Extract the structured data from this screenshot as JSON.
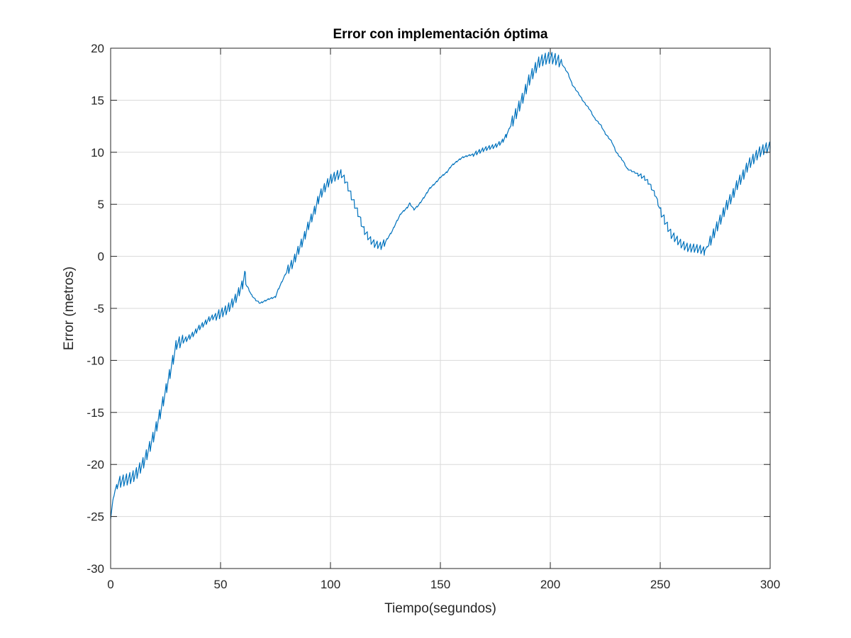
{
  "chart_data": {
    "type": "line",
    "title": "Error con implementación óptima",
    "xlabel": "Tiempo(segundos)",
    "ylabel": "Error (metros)",
    "xlim": [
      0,
      300
    ],
    "ylim": [
      -30,
      20
    ],
    "x_ticks": [
      "0",
      "50",
      "100",
      "150",
      "200",
      "250",
      "300"
    ],
    "y_ticks": [
      "20",
      "15",
      "10",
      "5",
      "0",
      "-5",
      "-10",
      "-15",
      "-20",
      "-25",
      "-30"
    ],
    "grid": true,
    "legend": "none",
    "colors": {
      "line": "#0072BD",
      "grid": "#d9d9d9",
      "axes": "#262626"
    },
    "series": [
      {
        "x": [
          0,
          1,
          2,
          3,
          5,
          8,
          10,
          12,
          15,
          18,
          20,
          22,
          25,
          28,
          30,
          32,
          35,
          38,
          40,
          43,
          45,
          48,
          50,
          53,
          55,
          57,
          60,
          61,
          62,
          64,
          66,
          68,
          70,
          72,
          75,
          76,
          78,
          80,
          83,
          85,
          88,
          90,
          93,
          95,
          98,
          100,
          103,
          105,
          107,
          110,
          113,
          115,
          118,
          120,
          123,
          125,
          128,
          130,
          132,
          135,
          136,
          138,
          140,
          143,
          145,
          148,
          150,
          153,
          155,
          158,
          160,
          163,
          165,
          168,
          170,
          173,
          175,
          178,
          180,
          182,
          185,
          188,
          190,
          193,
          195,
          198,
          200,
          203,
          205,
          208,
          210,
          213,
          215,
          218,
          220,
          223,
          225,
          228,
          230,
          233,
          235,
          238,
          240,
          243,
          245,
          248,
          250,
          253,
          255,
          258,
          260,
          263,
          265,
          268,
          270,
          272,
          275,
          278,
          280,
          283,
          285,
          288,
          290,
          293,
          295,
          298,
          300
        ],
        "y": [
          -25.2,
          -23.5,
          -22.5,
          -21.8,
          -21.6,
          -21.4,
          -21.2,
          -20.8,
          -19.8,
          -18.2,
          -17,
          -15.5,
          -13,
          -10.3,
          -8.4,
          -8.2,
          -7.9,
          -7.4,
          -6.9,
          -6.4,
          -6,
          -5.7,
          -5.5,
          -5.1,
          -4.6,
          -4,
          -2.7,
          -1.7,
          -2.8,
          -3.7,
          -4.2,
          -4.5,
          -4.3,
          -4.1,
          -3.9,
          -3.3,
          -2.4,
          -1.5,
          -0.6,
          0.4,
          1.8,
          3,
          4.5,
          5.8,
          6.8,
          7.4,
          7.8,
          7.9,
          7.2,
          5.5,
          3.9,
          2.6,
          1.6,
          1.2,
          1,
          1.4,
          2.4,
          3.3,
          4.1,
          4.7,
          5.1,
          4.5,
          4.9,
          5.8,
          6.5,
          7.1,
          7.6,
          8.1,
          8.7,
          9.2,
          9.5,
          9.7,
          9.8,
          10.1,
          10.3,
          10.5,
          10.6,
          11,
          11.6,
          12.6,
          14,
          15.5,
          16.8,
          18,
          18.7,
          19,
          19.1,
          18.9,
          18.6,
          17.6,
          16.5,
          15.6,
          14.9,
          14.1,
          13.3,
          12.6,
          11.8,
          11,
          10,
          9.2,
          8.4,
          8.1,
          7.9,
          7.5,
          7,
          5.8,
          4.4,
          3,
          2.1,
          1.5,
          1.1,
          0.8,
          0.8,
          0.7,
          0.5,
          1.1,
          2.5,
          3.8,
          4.8,
          5.9,
          6.9,
          7.9,
          8.8,
          9.5,
          10,
          10.4,
          10.5
        ]
      }
    ],
    "noise": {
      "comment": "",
      "wiggle_intervals": [
        [
          3,
          33,
          0.55
        ],
        [
          33,
          48,
          0.25
        ],
        [
          48,
          62,
          0.45
        ],
        [
          80,
          105,
          0.45
        ],
        [
          105,
          125,
          0.35
        ],
        [
          165,
          180,
          0.2
        ],
        [
          182,
          205,
          0.55
        ],
        [
          240,
          250,
          0.2
        ],
        [
          250,
          270,
          0.4
        ],
        [
          272,
          300,
          0.5
        ]
      ]
    }
  }
}
